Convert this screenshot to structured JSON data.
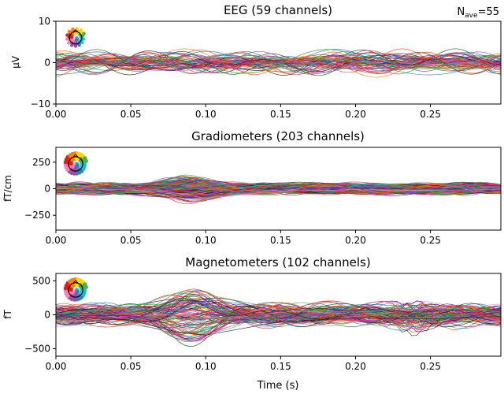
{
  "chart_data": [
    {
      "type": "line",
      "title": "EEG (59 channels)",
      "ylabel": "µV",
      "xlabel": "",
      "xlim": [
        0.0,
        0.297
      ],
      "ylim": [
        -10,
        10
      ],
      "xticks": [
        "0.00",
        "0.05",
        "0.10",
        "0.15",
        "0.20",
        "0.25"
      ],
      "yticks": [
        "10",
        "0",
        "−10"
      ],
      "ytick_values": [
        10,
        0,
        -10
      ],
      "grid": false,
      "series_count": 59,
      "amplitude": 2.6,
      "sample_traces": [
        {
          "x": [
            0.0,
            0.03,
            0.06,
            0.09,
            0.12,
            0.15,
            0.18,
            0.21,
            0.24,
            0.27,
            0.297
          ],
          "y": [
            0.5,
            0.8,
            1.5,
            1.0,
            -0.5,
            0.8,
            1.2,
            2.5,
            1.5,
            0.5,
            0.0
          ]
        },
        {
          "x": [
            0.0,
            0.03,
            0.06,
            0.09,
            0.12,
            0.15,
            0.18,
            0.21,
            0.24,
            0.27,
            0.297
          ],
          "y": [
            -0.5,
            0.0,
            -1.5,
            -1.0,
            0.5,
            0.0,
            -0.5,
            -2.5,
            -1.0,
            -0.5,
            -1.0
          ]
        }
      ]
    },
    {
      "type": "line",
      "title": "Gradiometers (203 channels)",
      "ylabel": "fT/cm",
      "xlabel": "",
      "xlim": [
        0.0,
        0.297
      ],
      "ylim": [
        -390,
        390
      ],
      "xticks": [
        "0.00",
        "0.05",
        "0.10",
        "0.15",
        "0.20",
        "0.25"
      ],
      "yticks": [
        "250",
        "0",
        "−250"
      ],
      "ytick_values": [
        250,
        0,
        -250
      ],
      "grid": false,
      "series_count": 203,
      "amplitude": 45,
      "sample_traces": [
        {
          "x": [
            0.0,
            0.05,
            0.08,
            0.1,
            0.15,
            0.2,
            0.25,
            0.297
          ],
          "y": [
            0,
            10,
            110,
            40,
            10,
            20,
            15,
            5
          ]
        },
        {
          "x": [
            0.0,
            0.05,
            0.08,
            0.1,
            0.15,
            0.2,
            0.25,
            0.297
          ],
          "y": [
            0,
            -10,
            -40,
            -90,
            -20,
            -10,
            -15,
            -5
          ]
        }
      ]
    },
    {
      "type": "line",
      "title": "Magnetometers (102 channels)",
      "ylabel": "fT",
      "xlabel": "Time (s)",
      "xlim": [
        0.0,
        0.297
      ],
      "ylim": [
        -610,
        610
      ],
      "xticks": [
        "0.00",
        "0.05",
        "0.10",
        "0.15",
        "0.20",
        "0.25"
      ],
      "yticks": [
        "500",
        "0",
        "−500"
      ],
      "ytick_values": [
        500,
        0,
        -500
      ],
      "grid": false,
      "series_count": 102,
      "amplitude": 150,
      "sample_traces": [
        {
          "x": [
            0.0,
            0.05,
            0.08,
            0.1,
            0.15,
            0.2,
            0.25,
            0.297
          ],
          "y": [
            20,
            100,
            320,
            300,
            80,
            40,
            130,
            40
          ]
        },
        {
          "x": [
            0.0,
            0.05,
            0.08,
            0.1,
            0.15,
            0.2,
            0.25,
            0.297
          ],
          "y": [
            -20,
            -80,
            -250,
            -300,
            -100,
            -50,
            -60,
            -20
          ]
        }
      ]
    }
  ],
  "nave_label": {
    "prefix": "N",
    "subscript": "ave",
    "suffix": "=55"
  },
  "trace_colors": [
    "#e41a1c",
    "#377eb8",
    "#4daf4a",
    "#984ea3",
    "#ff7f00",
    "#a65628",
    "#f781bf",
    "#222222",
    "#1f77b4",
    "#ff1493",
    "#2ca02c",
    "#8b008b",
    "#d62728",
    "#17becf",
    "#9467bd",
    "#ff4500",
    "#006400",
    "#4b0082"
  ],
  "sensor_icons": [
    "eeg-sensor-topomap-icon",
    "gradiometer-sensor-topomap-icon",
    "magnetometer-sensor-topomap-icon"
  ]
}
